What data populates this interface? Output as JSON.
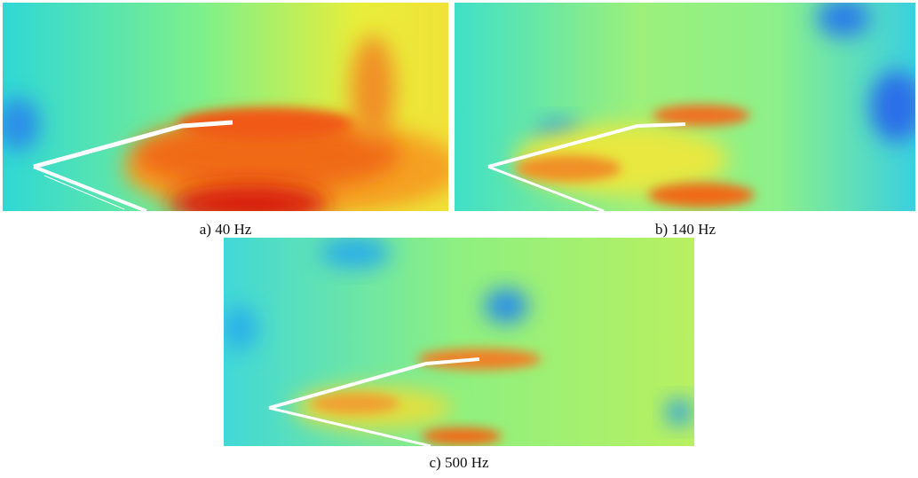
{
  "figure": {
    "panels": [
      {
        "caption": "a) 40 Hz"
      },
      {
        "caption": "b) 140 Hz"
      },
      {
        "caption": "c) 500 Hz"
      }
    ]
  }
}
